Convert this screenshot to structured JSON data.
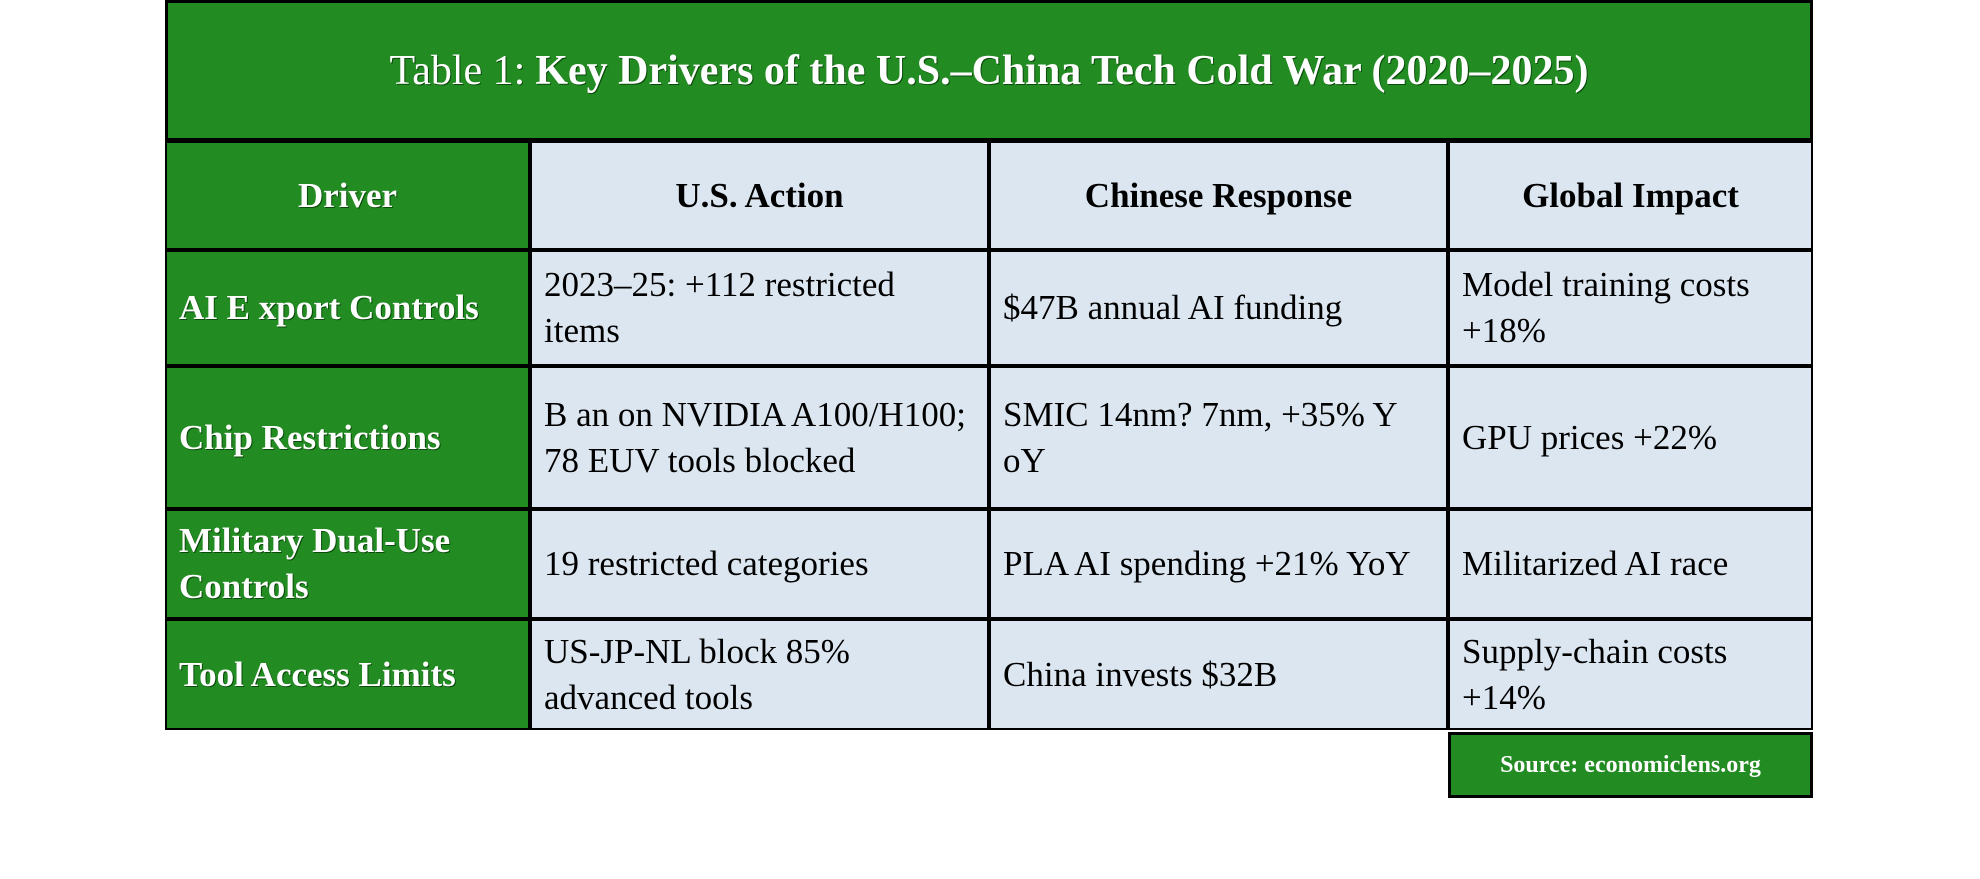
{
  "title": {
    "prefix": "Table 1:",
    "main": "Key Drivers of the U.S.–China Tech Cold War (2020–2025)"
  },
  "headers": [
    "Driver",
    "U.S. Action",
    "Chinese Response",
    "Global Impact"
  ],
  "rows": [
    {
      "driver": "AI E xport Controls",
      "us_action": "2023–25: +112 restricted items",
      "chinese_response": "$47B annual AI funding",
      "global_impact": "Model training costs +18%"
    },
    {
      "driver": "Chip Restrictions",
      "us_action": "B an on NVIDIA A100/H100; 78 EUV tools blocked",
      "chinese_response": "SMIC 14nm?  7nm, +35% Y oY",
      "global_impact": "GPU prices +22%"
    },
    {
      "driver": "Military Dual-Use Controls",
      "us_action": "19 restricted categories",
      "chinese_response": "PLA AI spending +21% YoY",
      "global_impact": "Militarized AI race"
    },
    {
      "driver": "Tool Access Limits",
      "us_action": "US-JP-NL block 85% advanced tools",
      "chinese_response": "China invests $32B",
      "global_impact": "Supply-chain costs +14%"
    }
  ],
  "source": "Source: economiclens.org",
  "colors": {
    "header_green": "#228B22",
    "cell_light": "#dce6f0"
  }
}
